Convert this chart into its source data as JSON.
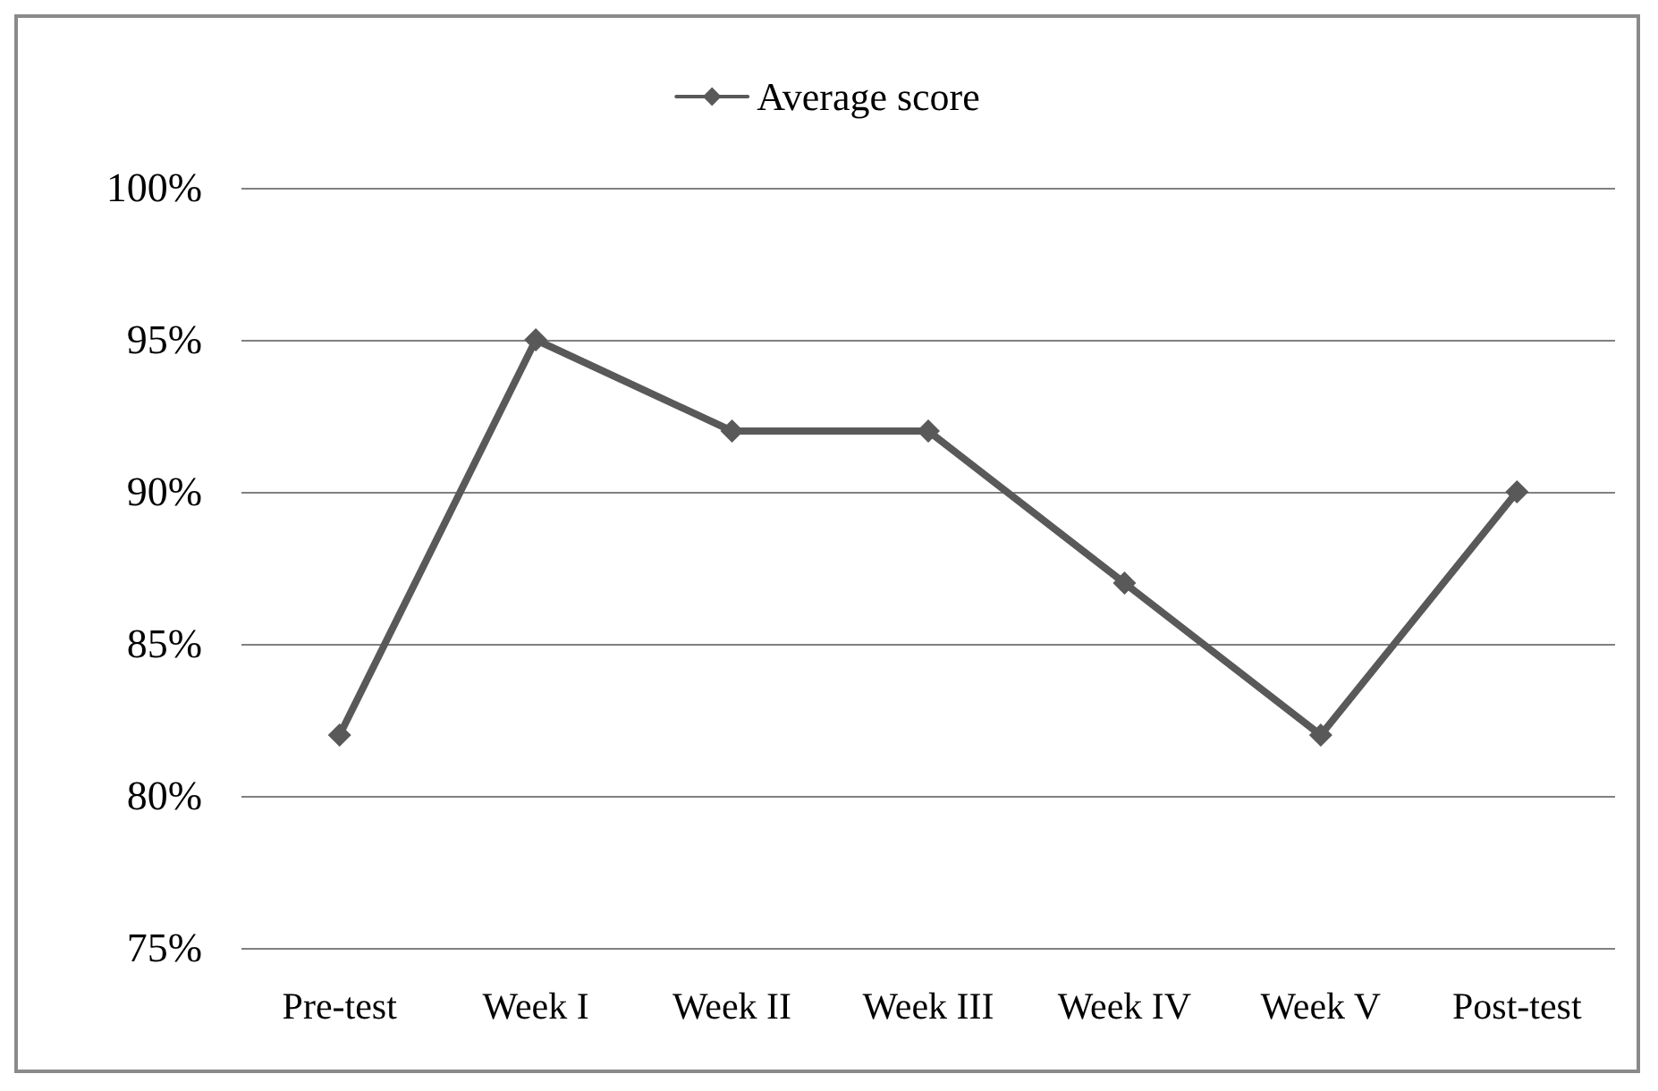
{
  "chart_data": {
    "type": "line",
    "categories": [
      "Pre-test",
      "Week I",
      "Week II",
      "Week III",
      "Week IV",
      "Week V",
      "Post-test"
    ],
    "series": [
      {
        "name": "Average score",
        "color": "#595959",
        "values": [
          82,
          95,
          92,
          92,
          87,
          82,
          90
        ]
      }
    ],
    "ylim": [
      75,
      100
    ],
    "yticks": [
      {
        "value": 75,
        "label": "75%"
      },
      {
        "value": 80,
        "label": "80%"
      },
      {
        "value": 85,
        "label": "85%"
      },
      {
        "value": 90,
        "label": "90%"
      },
      {
        "value": 95,
        "label": "95%"
      },
      {
        "value": 100,
        "label": "100%"
      }
    ],
    "grid": "y",
    "legend": "top",
    "marker": "diamond",
    "line_style": "solid"
  }
}
